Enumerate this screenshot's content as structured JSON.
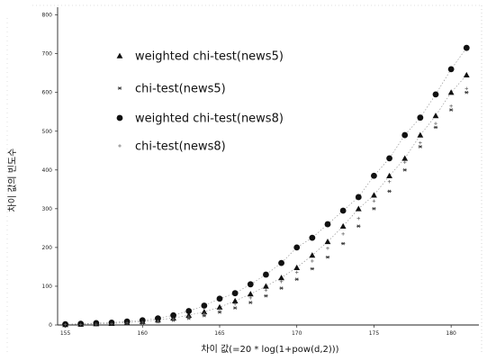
{
  "chart_data": {
    "type": "scatter",
    "xlabel": "차이 값(=20 * log(1+pow(d,2)))",
    "ylabel": "차이 값의 빈도수",
    "xlim": [
      154.5,
      181.8
    ],
    "ylim": [
      0,
      820
    ],
    "xticks": [
      155,
      160,
      165,
      170,
      175,
      180
    ],
    "yticks": [
      0,
      100,
      200,
      300,
      400,
      500,
      600,
      700,
      800
    ],
    "legend": "top-left",
    "grid": false,
    "series": [
      {
        "name": "weighted chi-test(news5)",
        "marker": "triangle",
        "x": [
          155,
          156,
          157,
          158,
          159,
          160,
          161,
          162,
          163,
          164,
          165,
          166,
          167,
          168,
          169,
          170,
          171,
          172,
          173,
          174,
          175,
          176,
          177,
          178,
          179,
          180,
          181
        ],
        "y": [
          1,
          2,
          3,
          4,
          6,
          9,
          13,
          18,
          25,
          34,
          46,
          62,
          80,
          100,
          122,
          148,
          180,
          215,
          255,
          300,
          335,
          385,
          430,
          490,
          540,
          600,
          645
        ]
      },
      {
        "name": "chi-test(news5)",
        "marker": "star",
        "x": [
          155,
          156,
          157,
          158,
          159,
          160,
          161,
          162,
          163,
          164,
          165,
          166,
          167,
          168,
          169,
          170,
          171,
          172,
          173,
          174,
          175,
          176,
          177,
          178,
          179,
          180,
          181
        ],
        "y": [
          0,
          1,
          1,
          2,
          3,
          5,
          8,
          12,
          17,
          24,
          33,
          44,
          58,
          75,
          95,
          118,
          145,
          175,
          210,
          255,
          300,
          345,
          400,
          460,
          510,
          555,
          600
        ]
      },
      {
        "name": "weighted chi-test(news8)",
        "marker": "circle",
        "x": [
          155,
          156,
          157,
          158,
          159,
          160,
          161,
          162,
          163,
          164,
          165,
          166,
          167,
          168,
          169,
          170,
          171,
          172,
          173,
          174,
          175,
          176,
          177,
          178,
          179,
          180,
          181
        ],
        "y": [
          2,
          3,
          5,
          6,
          9,
          12,
          17,
          25,
          36,
          50,
          68,
          82,
          105,
          130,
          160,
          200,
          225,
          260,
          295,
          330,
          385,
          430,
          490,
          535,
          595,
          660,
          715
        ]
      },
      {
        "name": "chi-test(news8)",
        "marker": "plus",
        "x": [
          155,
          156,
          157,
          158,
          159,
          160,
          161,
          162,
          163,
          164,
          165,
          166,
          167,
          168,
          169,
          170,
          171,
          172,
          173,
          174,
          175,
          176,
          177,
          178,
          179,
          180,
          181
        ],
        "y": [
          1,
          1,
          2,
          3,
          5,
          7,
          10,
          15,
          21,
          29,
          40,
          54,
          70,
          90,
          112,
          136,
          165,
          198,
          235,
          275,
          320,
          370,
          420,
          470,
          520,
          565,
          610
        ]
      }
    ]
  }
}
